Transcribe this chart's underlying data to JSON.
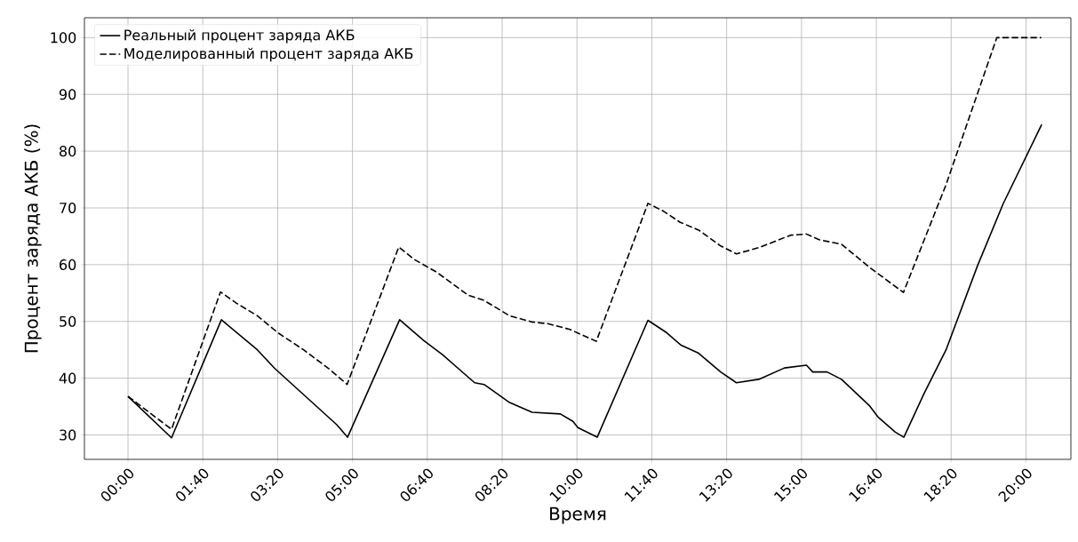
{
  "chart_data": {
    "type": "line",
    "xlabel": "Время",
    "ylabel": "Процент заряда АКБ (%)",
    "xlim": [
      -0.97,
      21.0
    ],
    "ylim": [
      25.7,
      103.5
    ],
    "xticks": [
      {
        "value": 0,
        "label": "00:00"
      },
      {
        "value": 1.6667,
        "label": "01:40"
      },
      {
        "value": 3.3333,
        "label": "03:20"
      },
      {
        "value": 5,
        "label": "05:00"
      },
      {
        "value": 6.6667,
        "label": "06:40"
      },
      {
        "value": 8.3333,
        "label": "08:20"
      },
      {
        "value": 10,
        "label": "10:00"
      },
      {
        "value": 11.6667,
        "label": "11:40"
      },
      {
        "value": 13.3333,
        "label": "13:20"
      },
      {
        "value": 15,
        "label": "15:00"
      },
      {
        "value": 16.6667,
        "label": "16:40"
      },
      {
        "value": 18.3333,
        "label": "18:20"
      },
      {
        "value": 20,
        "label": "20:00"
      }
    ],
    "yticks": [
      30,
      40,
      50,
      60,
      70,
      80,
      90,
      100
    ],
    "grid": true,
    "legend": "top left",
    "series": [
      {
        "name": "Реальный процент заряда АКБ",
        "color": "#000000",
        "line_style": "solid",
        "x": [
          0,
          0.97,
          2.08,
          2.88,
          3.27,
          4.65,
          4.89,
          6.05,
          6.59,
          7.01,
          7.72,
          7.93,
          8.5,
          9.0,
          9.63,
          9.91,
          10.02,
          10.45,
          11.58,
          12.0,
          12.32,
          12.71,
          13.2,
          13.55,
          14.05,
          14.62,
          15.11,
          15.25,
          15.57,
          15.89,
          16.52,
          16.7,
          17.09,
          17.28,
          17.73,
          18.22,
          18.92,
          19.49,
          20.35
        ],
        "values": [
          36.8,
          29.5,
          50.3,
          45.0,
          41.7,
          31.8,
          29.6,
          50.3,
          46.6,
          44.1,
          39.2,
          38.9,
          35.7,
          34.0,
          33.7,
          32.4,
          31.3,
          29.6,
          50.2,
          48.0,
          45.8,
          44.4,
          41.1,
          39.2,
          39.8,
          41.8,
          42.3,
          41.1,
          41.1,
          39.8,
          35.1,
          33.2,
          30.5,
          29.6,
          37.3,
          45.0,
          59.8,
          70.7,
          84.7
        ]
      },
      {
        "name": "Моделированный процент заряда АКБ",
        "color": "#000000",
        "line_style": "dashed",
        "x": [
          0,
          0.97,
          2.06,
          2.42,
          2.88,
          3.34,
          3.91,
          4.47,
          4.88,
          6.03,
          6.38,
          6.87,
          7.58,
          7.93,
          8.5,
          9.0,
          9.35,
          9.84,
          10.43,
          11.58,
          11.93,
          12.29,
          12.71,
          13.2,
          13.55,
          14.05,
          14.76,
          15.11,
          15.39,
          15.89,
          16.52,
          17.27,
          18.22,
          19.35,
          20.34
        ],
        "values": [
          36.8,
          31.0,
          55.2,
          53.2,
          51.0,
          48.0,
          45.0,
          41.7,
          38.9,
          63.1,
          60.9,
          58.7,
          54.6,
          53.7,
          51.0,
          49.9,
          49.6,
          48.6,
          46.5,
          70.8,
          69.4,
          67.5,
          66.1,
          63.3,
          61.9,
          63.0,
          65.2,
          65.4,
          64.4,
          63.6,
          59.5,
          55.1,
          74.1,
          100,
          100
        ]
      }
    ]
  }
}
